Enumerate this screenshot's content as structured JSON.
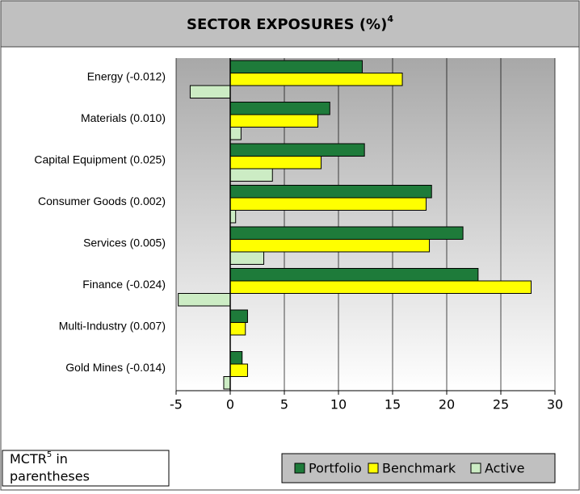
{
  "chart_data": {
    "type": "bar",
    "orientation": "horizontal",
    "title": "SECTOR EXPOSURES (%)",
    "title_superscript": "4",
    "categories": [
      "Energy (-0.012)",
      "Materials (0.010)",
      "Capital Equipment (0.025)",
      "Consumer Goods (0.002)",
      "Services (0.005)",
      "Finance (-0.024)",
      "Multi-Industry (0.007)",
      "Gold Mines (-0.014)"
    ],
    "series": [
      {
        "name": "Portfolio",
        "color": "#1e7b3a",
        "values": [
          12.2,
          9.2,
          12.4,
          18.6,
          21.5,
          22.9,
          1.6,
          1.1
        ]
      },
      {
        "name": "Benchmark",
        "color": "#ffff00",
        "values": [
          15.9,
          8.1,
          8.4,
          18.1,
          18.4,
          27.8,
          1.4,
          1.6
        ]
      },
      {
        "name": "Active",
        "color": "#ccecc4",
        "values": [
          -3.7,
          1.0,
          3.9,
          0.5,
          3.1,
          -4.8,
          0,
          -0.6
        ]
      }
    ],
    "xlim": [
      -5,
      30
    ],
    "xticks": [
      -5,
      0,
      5,
      10,
      15,
      20,
      25,
      30
    ],
    "grid": true,
    "note": {
      "text": "MCTR",
      "superscript": "5",
      "text2": " in",
      "line2": "parentheses"
    }
  }
}
